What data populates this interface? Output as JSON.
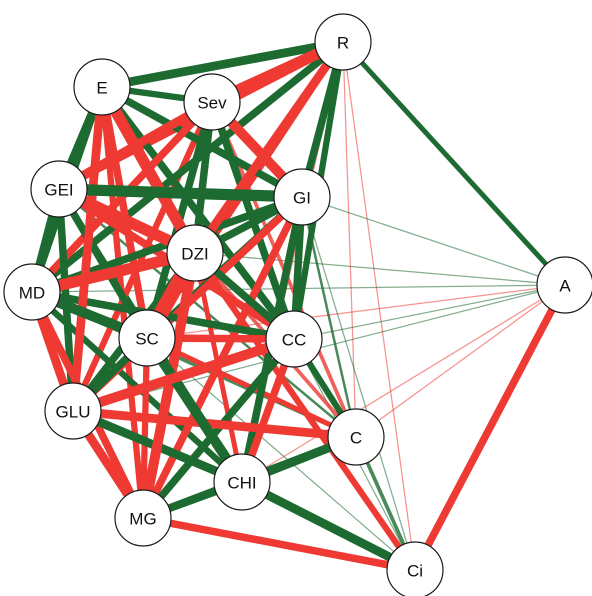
{
  "colors": {
    "positive": "#1d6b31",
    "negative": "#ee3a33",
    "node_fill": "#ffffff",
    "node_stroke": "#1a1a1a"
  },
  "nodes": [
    {
      "id": "R",
      "label": "R"
    },
    {
      "id": "E",
      "label": "E"
    },
    {
      "id": "Sev",
      "label": "Sev"
    },
    {
      "id": "GEI",
      "label": "GEI"
    },
    {
      "id": "GI",
      "label": "GI"
    },
    {
      "id": "DZI",
      "label": "DZI"
    },
    {
      "id": "MD",
      "label": "MD"
    },
    {
      "id": "A",
      "label": "A"
    },
    {
      "id": "SC",
      "label": "SC"
    },
    {
      "id": "CC",
      "label": "CC"
    },
    {
      "id": "GLU",
      "label": "GLU"
    },
    {
      "id": "C",
      "label": "C"
    },
    {
      "id": "CHI",
      "label": "CHI"
    },
    {
      "id": "MG",
      "label": "MG"
    },
    {
      "id": "Ci",
      "label": "Ci"
    }
  ],
  "edges": [
    {
      "from": "E",
      "to": "R",
      "sign": "pos",
      "weight": 7
    },
    {
      "from": "Sev",
      "to": "R",
      "sign": "neg",
      "weight": 9
    },
    {
      "from": "R",
      "to": "GEI",
      "sign": "neg",
      "weight": 6
    },
    {
      "from": "R",
      "to": "GI",
      "sign": "pos",
      "weight": 6
    },
    {
      "from": "R",
      "to": "DZI",
      "sign": "neg",
      "weight": 7
    },
    {
      "from": "R",
      "to": "MD",
      "sign": "pos",
      "weight": 6
    },
    {
      "from": "R",
      "to": "SC",
      "sign": "neg",
      "weight": 5
    },
    {
      "from": "R",
      "to": "CC",
      "sign": "pos",
      "weight": 5
    },
    {
      "from": "R",
      "to": "A",
      "sign": "pos",
      "weight": 4
    },
    {
      "from": "R",
      "to": "C",
      "sign": "neg",
      "weight": 1
    },
    {
      "from": "R",
      "to": "Ci",
      "sign": "neg",
      "weight": 1
    },
    {
      "from": "R",
      "to": "CHI",
      "sign": "neg",
      "weight": 1
    },
    {
      "from": "E",
      "to": "Sev",
      "sign": "pos",
      "weight": 5
    },
    {
      "from": "E",
      "to": "GEI",
      "sign": "pos",
      "weight": 5
    },
    {
      "from": "E",
      "to": "GI",
      "sign": "pos",
      "weight": 6
    },
    {
      "from": "E",
      "to": "DZI",
      "sign": "neg",
      "weight": 9
    },
    {
      "from": "E",
      "to": "MD",
      "sign": "pos",
      "weight": 6
    },
    {
      "from": "E",
      "to": "SC",
      "sign": "neg",
      "weight": 6
    },
    {
      "from": "E",
      "to": "CC",
      "sign": "pos",
      "weight": 6
    },
    {
      "from": "E",
      "to": "GLU",
      "sign": "neg",
      "weight": 7
    },
    {
      "from": "E",
      "to": "MG",
      "sign": "neg",
      "weight": 5
    },
    {
      "from": "Sev",
      "to": "GEI",
      "sign": "neg",
      "weight": 7
    },
    {
      "from": "Sev",
      "to": "GI",
      "sign": "neg",
      "weight": 8
    },
    {
      "from": "Sev",
      "to": "DZI",
      "sign": "pos",
      "weight": 6
    },
    {
      "from": "Sev",
      "to": "MD",
      "sign": "neg",
      "weight": 6
    },
    {
      "from": "Sev",
      "to": "SC",
      "sign": "pos",
      "weight": 6
    },
    {
      "from": "Sev",
      "to": "CC",
      "sign": "pos",
      "weight": 6
    },
    {
      "from": "Sev",
      "to": "C",
      "sign": "neg",
      "weight": 3
    },
    {
      "from": "Sev",
      "to": "GLU",
      "sign": "neg",
      "weight": 5
    },
    {
      "from": "GEI",
      "to": "GI",
      "sign": "pos",
      "weight": 9
    },
    {
      "from": "GEI",
      "to": "DZI",
      "sign": "neg",
      "weight": 9
    },
    {
      "from": "GEI",
      "to": "MD",
      "sign": "pos",
      "weight": 6
    },
    {
      "from": "GEI",
      "to": "SC",
      "sign": "pos",
      "weight": 6
    },
    {
      "from": "GEI",
      "to": "GLU",
      "sign": "pos",
      "weight": 6
    },
    {
      "from": "GEI",
      "to": "CC",
      "sign": "neg",
      "weight": 6
    },
    {
      "from": "GEI",
      "to": "C",
      "sign": "pos",
      "weight": 2
    },
    {
      "from": "GEI",
      "to": "CHI",
      "sign": "pos",
      "weight": 4
    },
    {
      "from": "GI",
      "to": "DZI",
      "sign": "pos",
      "weight": 6
    },
    {
      "from": "GI",
      "to": "MD",
      "sign": "pos",
      "weight": 6
    },
    {
      "from": "GI",
      "to": "SC",
      "sign": "pos",
      "weight": 6
    },
    {
      "from": "GI",
      "to": "CC",
      "sign": "pos",
      "weight": 6
    },
    {
      "from": "GI",
      "to": "GLU",
      "sign": "neg",
      "weight": 6
    },
    {
      "from": "GI",
      "to": "MG",
      "sign": "neg",
      "weight": 6
    },
    {
      "from": "GI",
      "to": "A",
      "sign": "pos",
      "weight": 1
    },
    {
      "from": "GI",
      "to": "C",
      "sign": "pos",
      "weight": 2
    },
    {
      "from": "GI",
      "to": "CHI",
      "sign": "pos",
      "weight": 6
    },
    {
      "from": "DZI",
      "to": "MD",
      "sign": "neg",
      "weight": 9
    },
    {
      "from": "DZI",
      "to": "SC",
      "sign": "neg",
      "weight": 12
    },
    {
      "from": "DZI",
      "to": "CC",
      "sign": "pos",
      "weight": 6
    },
    {
      "from": "DZI",
      "to": "GLU",
      "sign": "pos",
      "weight": 6
    },
    {
      "from": "DZI",
      "to": "MG",
      "sign": "neg",
      "weight": 8
    },
    {
      "from": "DZI",
      "to": "C",
      "sign": "neg",
      "weight": 3
    },
    {
      "from": "DZI",
      "to": "CHI",
      "sign": "neg",
      "weight": 4
    },
    {
      "from": "DZI",
      "to": "A",
      "sign": "pos",
      "weight": 1
    },
    {
      "from": "MD",
      "to": "SC",
      "sign": "pos",
      "weight": 8
    },
    {
      "from": "MD",
      "to": "CC",
      "sign": "pos",
      "weight": 6
    },
    {
      "from": "MD",
      "to": "GLU",
      "sign": "neg",
      "weight": 7
    },
    {
      "from": "MD",
      "to": "MG",
      "sign": "neg",
      "weight": 6
    },
    {
      "from": "MD",
      "to": "A",
      "sign": "pos",
      "weight": 1
    },
    {
      "from": "MD",
      "to": "C",
      "sign": "pos",
      "weight": 3
    },
    {
      "from": "MD",
      "to": "CHI",
      "sign": "pos",
      "weight": 5
    },
    {
      "from": "SC",
      "to": "CC",
      "sign": "neg",
      "weight": 6
    },
    {
      "from": "SC",
      "to": "GLU",
      "sign": "pos",
      "weight": 6
    },
    {
      "from": "SC",
      "to": "MG",
      "sign": "neg",
      "weight": 5
    },
    {
      "from": "SC",
      "to": "C",
      "sign": "neg",
      "weight": 4
    },
    {
      "from": "SC",
      "to": "CHI",
      "sign": "pos",
      "weight": 8
    },
    {
      "from": "SC",
      "to": "A",
      "sign": "neg",
      "weight": 1
    },
    {
      "from": "SC",
      "to": "Ci",
      "sign": "pos",
      "weight": 1
    },
    {
      "from": "CC",
      "to": "GLU",
      "sign": "neg",
      "weight": 8
    },
    {
      "from": "CC",
      "to": "MG",
      "sign": "pos",
      "weight": 6
    },
    {
      "from": "CC",
      "to": "C",
      "sign": "pos",
      "weight": 5
    },
    {
      "from": "CC",
      "to": "CHI",
      "sign": "neg",
      "weight": 6
    },
    {
      "from": "CC",
      "to": "A",
      "sign": "pos",
      "weight": 1
    },
    {
      "from": "CC",
      "to": "Ci",
      "sign": "pos",
      "weight": 1
    },
    {
      "from": "GLU",
      "to": "MG",
      "sign": "neg",
      "weight": 7
    },
    {
      "from": "GLU",
      "to": "CHI",
      "sign": "pos",
      "weight": 7
    },
    {
      "from": "GLU",
      "to": "C",
      "sign": "neg",
      "weight": 7
    },
    {
      "from": "C",
      "to": "CHI",
      "sign": "pos",
      "weight": 7
    },
    {
      "from": "C",
      "to": "MG",
      "sign": "pos",
      "weight": 6
    },
    {
      "from": "C",
      "to": "A",
      "sign": "neg",
      "weight": 1
    },
    {
      "from": "C",
      "to": "Ci",
      "sign": "pos",
      "weight": 3
    },
    {
      "from": "CHI",
      "to": "MG",
      "sign": "pos",
      "weight": 6
    },
    {
      "from": "CHI",
      "to": "Ci",
      "sign": "pos",
      "weight": 7
    },
    {
      "from": "MG",
      "to": "Ci",
      "sign": "neg",
      "weight": 6
    },
    {
      "from": "A",
      "to": "Ci",
      "sign": "neg",
      "weight": 6
    },
    {
      "from": "CC",
      "to": "R",
      "sign": "neg",
      "weight": 1
    },
    {
      "from": "GI",
      "to": "Ci",
      "sign": "pos",
      "weight": 1
    },
    {
      "from": "DZI",
      "to": "Ci",
      "sign": "neg",
      "weight": 5
    },
    {
      "from": "GLU",
      "to": "A",
      "sign": "pos",
      "weight": 1
    },
    {
      "from": "CHI",
      "to": "A",
      "sign": "neg",
      "weight": 1
    }
  ]
}
